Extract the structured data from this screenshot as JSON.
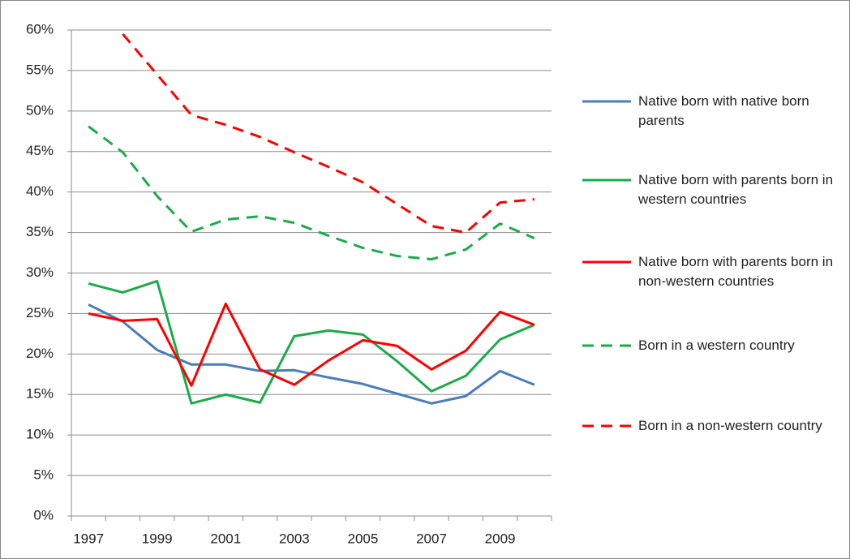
{
  "chart_data": {
    "type": "line",
    "categories": [
      "1997",
      null,
      "1999",
      null,
      "2001",
      null,
      "2003",
      null,
      "2005",
      null,
      "2007",
      null,
      "2009",
      null
    ],
    "ylim": [
      0,
      60
    ],
    "yticks": [
      {
        "value": 0,
        "label": "0%"
      },
      {
        "value": 5,
        "label": "5%"
      },
      {
        "value": 10,
        "label": "10%"
      },
      {
        "value": 15,
        "label": "15%"
      },
      {
        "value": 20,
        "label": "20%"
      },
      {
        "value": 25,
        "label": "25%"
      },
      {
        "value": 30,
        "label": "30%"
      },
      {
        "value": 35,
        "label": "35%"
      },
      {
        "value": 40,
        "label": "40%"
      },
      {
        "value": 45,
        "label": "45%"
      },
      {
        "value": 50,
        "label": "50%"
      },
      {
        "value": 55,
        "label": "55%"
      },
      {
        "value": 60,
        "label": "60%"
      }
    ],
    "grid": true,
    "legend": "right",
    "series": [
      {
        "name": "Native born with native born parents",
        "color": "#4a7ebb",
        "dashed": false,
        "values": [
          26.1,
          24,
          20.5,
          18.7,
          18.7,
          17.9,
          18,
          17.1,
          16.3,
          15.1,
          13.9,
          14.8,
          17.9,
          16.2
        ]
      },
      {
        "name": "Native born with parents born in western countries",
        "color": "#1cab4a",
        "dashed": false,
        "values": [
          28.7,
          27.6,
          29,
          13.9,
          15,
          14,
          22.2,
          22.9,
          22.4,
          19.1,
          15.4,
          17.3,
          21.8,
          23.6
        ]
      },
      {
        "name": "Native born with parents born in non-western countries",
        "color": "#ff0000",
        "dashed": false,
        "values": [
          25,
          24.1,
          24.3,
          16.1,
          26.2,
          18.1,
          16.2,
          19.2,
          21.7,
          21,
          18.1,
          20.4,
          25.2,
          23.6
        ]
      },
      {
        "name": "Born in a western country",
        "color": "#1cab4a",
        "dashed": true,
        "values": [
          48.1,
          44.9,
          39.5,
          35.1,
          36.6,
          37,
          36.2,
          34.6,
          33.1,
          32.1,
          31.7,
          32.9,
          36.1,
          34.3
        ]
      },
      {
        "name": "Born in a non-western country",
        "color": "#ff0000",
        "dashed": true,
        "values": [
          null,
          59.5,
          54.5,
          49.5,
          48.3,
          46.8,
          44.9,
          43.1,
          41.2,
          38.5,
          35.8,
          35,
          38.7,
          39.1
        ]
      }
    ]
  }
}
